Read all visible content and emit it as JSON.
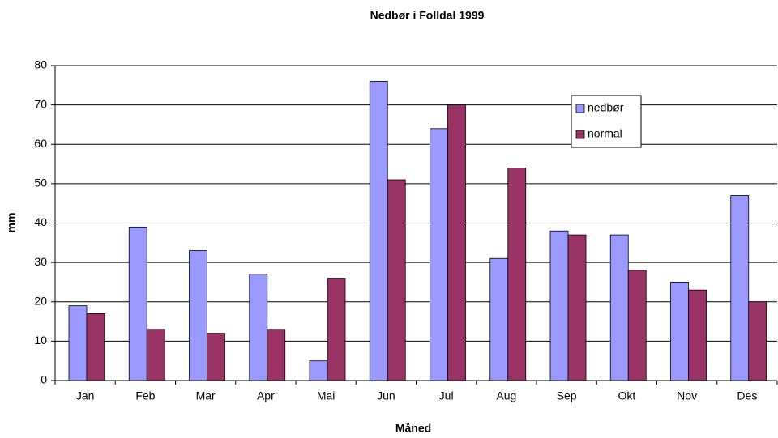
{
  "chart_data": {
    "type": "bar",
    "title": "Nedbør i Folldal 1999",
    "x_label": "Måned",
    "y_label": "mm",
    "categories": [
      "Jan",
      "Feb",
      "Mar",
      "Apr",
      "Mai",
      "Jun",
      "Jul",
      "Aug",
      "Sep",
      "Okt",
      "Nov",
      "Des"
    ],
    "series": [
      {
        "name": "nedbør",
        "color": "#9999ff",
        "values": [
          19,
          39,
          33,
          27,
          5,
          76,
          64,
          31,
          38,
          37,
          25,
          47
        ]
      },
      {
        "name": "normal",
        "color": "#993366",
        "values": [
          17,
          13,
          12,
          13,
          26,
          51,
          70,
          54,
          37,
          28,
          23,
          20
        ]
      }
    ],
    "ylim": [
      0,
      80
    ],
    "yticks": [
      0,
      10,
      20,
      30,
      40,
      50,
      60,
      70,
      80
    ],
    "grid": true,
    "legend": "upper right"
  }
}
